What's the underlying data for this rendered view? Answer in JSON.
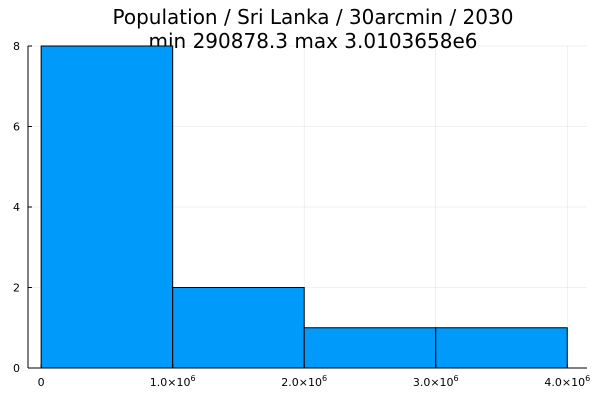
{
  "chart_data": {
    "type": "bar",
    "title": "Population / Sri Lanka / 30arcmin / 2030",
    "subtitle": "min 290878.3  max 3.0103658e6",
    "xlabel": "",
    "ylabel": "",
    "bin_edges": [
      0,
      1000000,
      2000000,
      3000000,
      4000000
    ],
    "values": [
      8,
      2,
      1,
      1
    ],
    "xlim": [
      -100000,
      4150000
    ],
    "ylim": [
      0,
      8
    ],
    "x_ticks": [
      {
        "value": 0,
        "mantissa": "0",
        "exponent": ""
      },
      {
        "value": 1000000,
        "mantissa": "1.0×10",
        "exponent": "6"
      },
      {
        "value": 2000000,
        "mantissa": "2.0×10",
        "exponent": "6"
      },
      {
        "value": 3000000,
        "mantissa": "3.0×10",
        "exponent": "6"
      },
      {
        "value": 4000000,
        "mantissa": "4.0×10",
        "exponent": "6"
      }
    ],
    "y_ticks": [
      {
        "value": 0,
        "label": "0"
      },
      {
        "value": 2,
        "label": "2"
      },
      {
        "value": 4,
        "label": "4"
      },
      {
        "value": 6,
        "label": "6"
      },
      {
        "value": 8,
        "label": "8"
      }
    ],
    "grid": true,
    "legend": false,
    "bar_color": "#009AFA",
    "bar_edge_color": "#000000"
  }
}
